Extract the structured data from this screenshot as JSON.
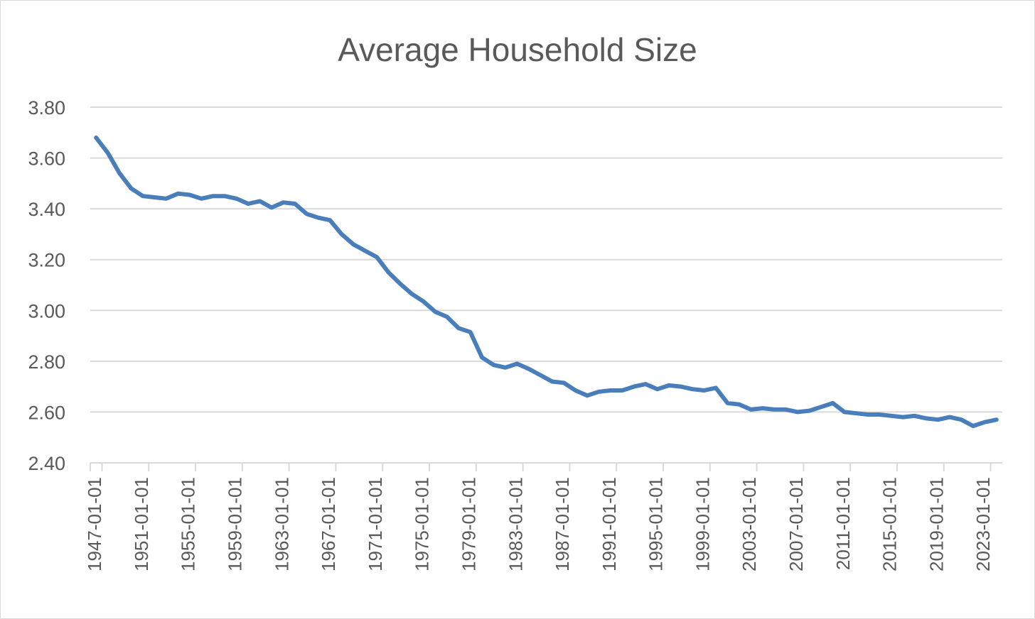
{
  "chart_data": {
    "type": "line",
    "title": "Average Household Size",
    "xlabel": "",
    "ylabel": "",
    "ylim": [
      2.4,
      3.8
    ],
    "yticks": [
      "2.40",
      "2.60",
      "2.80",
      "3.00",
      "3.20",
      "3.40",
      "3.60",
      "3.80"
    ],
    "grid": true,
    "legend": "none",
    "colors": {
      "series": "#4a7ebb",
      "grid": "#d9d9d9",
      "text": "#595959"
    },
    "x": [
      "1947-01-01",
      "1948-01-01",
      "1949-01-01",
      "1950-01-01",
      "1951-01-01",
      "1952-01-01",
      "1953-01-01",
      "1954-01-01",
      "1955-01-01",
      "1956-01-01",
      "1957-01-01",
      "1958-01-01",
      "1959-01-01",
      "1960-01-01",
      "1961-01-01",
      "1962-01-01",
      "1963-01-01",
      "1964-01-01",
      "1965-01-01",
      "1966-01-01",
      "1967-01-01",
      "1968-01-01",
      "1969-01-01",
      "1970-01-01",
      "1971-01-01",
      "1972-01-01",
      "1973-01-01",
      "1974-01-01",
      "1975-01-01",
      "1976-01-01",
      "1977-01-01",
      "1978-01-01",
      "1979-01-01",
      "1980-01-01",
      "1981-01-01",
      "1982-01-01",
      "1983-01-01",
      "1984-01-01",
      "1985-01-01",
      "1986-01-01",
      "1987-01-01",
      "1988-01-01",
      "1989-01-01",
      "1990-01-01",
      "1991-01-01",
      "1992-01-01",
      "1993-01-01",
      "1994-01-01",
      "1995-01-01",
      "1996-01-01",
      "1997-01-01",
      "1998-01-01",
      "1999-01-01",
      "2000-01-01",
      "2001-01-01",
      "2002-01-01",
      "2003-01-01",
      "2004-01-01",
      "2005-01-01",
      "2006-01-01",
      "2007-01-01",
      "2008-01-01",
      "2009-01-01",
      "2010-01-01",
      "2011-01-01",
      "2012-01-01",
      "2013-01-01",
      "2014-01-01",
      "2015-01-01",
      "2016-01-01",
      "2017-01-01",
      "2018-01-01",
      "2019-01-01",
      "2020-01-01",
      "2021-01-01",
      "2022-01-01",
      "2023-01-01",
      "2024-01-01"
    ],
    "xtick_labels": [
      "1947-01-01",
      "1951-01-01",
      "1955-01-01",
      "1959-01-01",
      "1963-01-01",
      "1967-01-01",
      "1971-01-01",
      "1975-01-01",
      "1979-01-01",
      "1983-01-01",
      "1987-01-01",
      "1991-01-01",
      "1995-01-01",
      "1999-01-01",
      "2003-01-01",
      "2007-01-01",
      "2011-01-01",
      "2015-01-01",
      "2019-01-01",
      "2023-01-01"
    ],
    "series": [
      {
        "values": [
          3.68,
          3.62,
          3.54,
          3.48,
          3.45,
          3.445,
          3.44,
          3.46,
          3.455,
          3.44,
          3.45,
          3.45,
          3.44,
          3.42,
          3.43,
          3.405,
          3.425,
          3.42,
          3.38,
          3.365,
          3.355,
          3.3,
          3.26,
          3.235,
          3.21,
          3.15,
          3.105,
          3.065,
          3.035,
          2.995,
          2.975,
          2.93,
          2.915,
          2.815,
          2.785,
          2.775,
          2.79,
          2.77,
          2.745,
          2.72,
          2.715,
          2.685,
          2.665,
          2.68,
          2.685,
          2.685,
          2.7,
          2.71,
          2.69,
          2.705,
          2.7,
          2.69,
          2.685,
          2.695,
          2.635,
          2.63,
          2.61,
          2.615,
          2.61,
          2.61,
          2.6,
          2.605,
          2.62,
          2.635,
          2.6,
          2.595,
          2.59,
          2.59,
          2.585,
          2.58,
          2.585,
          2.575,
          2.57,
          2.58,
          2.57,
          2.545,
          2.56,
          2.57
        ]
      }
    ]
  }
}
